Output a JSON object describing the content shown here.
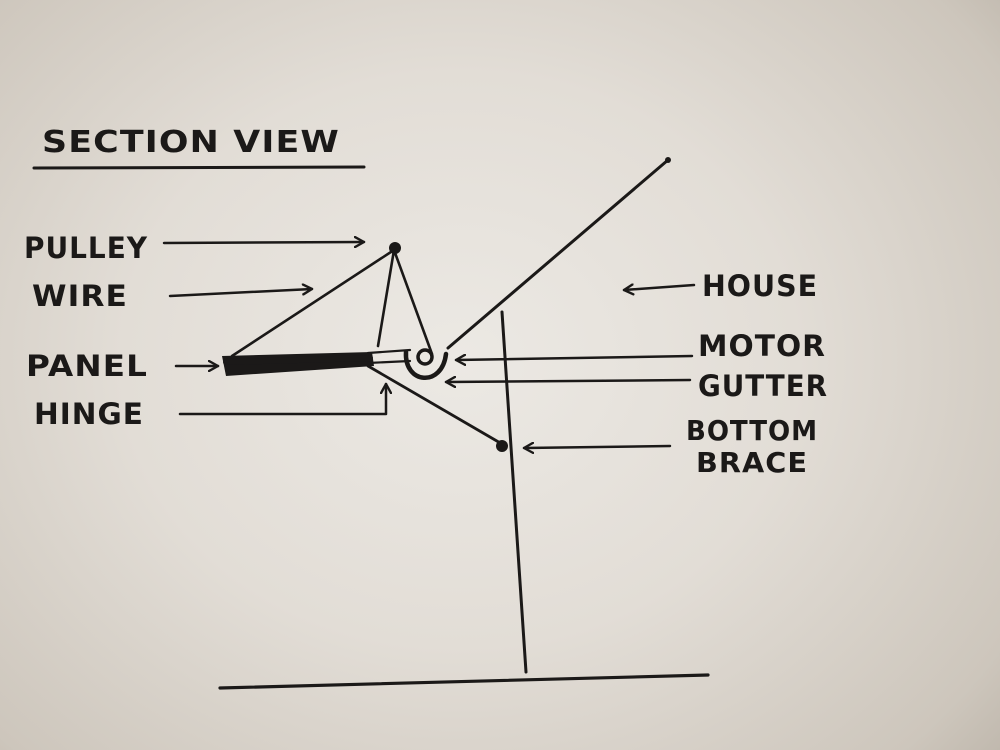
{
  "diagram": {
    "title": "SECTION VIEW",
    "labels": {
      "pulley": "PULLEY",
      "wire": "WIRE",
      "panel": "PANEL",
      "hinge": "HINGE",
      "house": "HOUSE",
      "motor": "MOTOR",
      "gutter": "GUTTER",
      "bottom_brace_line1": "BOTTOM",
      "bottom_brace_line2": "BRACE"
    },
    "colors": {
      "ink": "#1b1918",
      "paper": "#e6e2dc"
    }
  }
}
